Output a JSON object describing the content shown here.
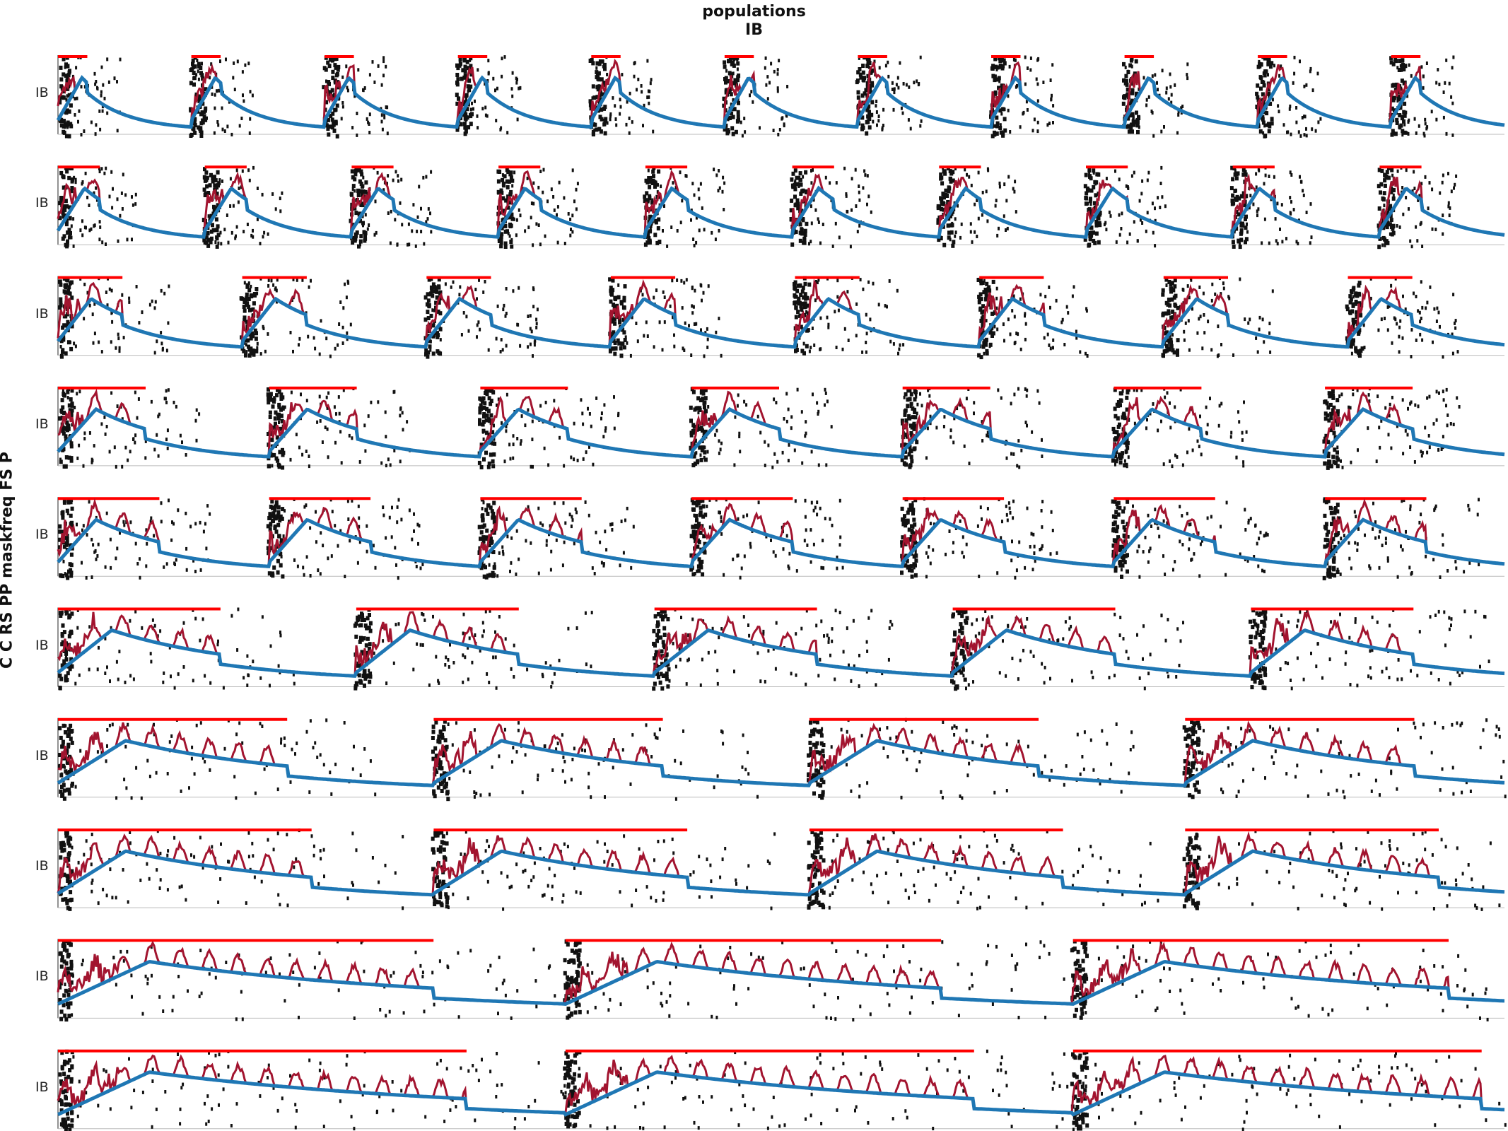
{
  "title": "populations",
  "subtitle": "IB",
  "sweep_axis_label": "C C RS PP maskfreq FS P",
  "row_label": "IB",
  "colors": {
    "raster": "#111111",
    "pulse_bar": "#ff0000",
    "lfp": "#a2142f",
    "mean_rate": "#1f77b4",
    "axis": "#262626"
  },
  "chart_data": {
    "type": "line",
    "layout": "stacked-panels",
    "n_panels": 10,
    "grid": false,
    "legend": "none",
    "panels": [
      {
        "panel": 1,
        "label": "IB",
        "bursts": 11
      },
      {
        "panel": 2,
        "label": "IB",
        "bursts": 10
      },
      {
        "panel": 3,
        "label": "IB",
        "bursts": 8
      },
      {
        "panel": 4,
        "label": "IB",
        "bursts": 7
      },
      {
        "panel": 5,
        "label": "IB",
        "bursts": 7
      },
      {
        "panel": 6,
        "label": "IB",
        "bursts": 5
      },
      {
        "panel": 7,
        "label": "IB",
        "bursts": 4
      },
      {
        "panel": 8,
        "label": "IB",
        "bursts": 4
      },
      {
        "panel": 9,
        "label": "IB",
        "bursts": 3
      },
      {
        "panel": 10,
        "label": "IB",
        "bursts": 3
      }
    ]
  }
}
